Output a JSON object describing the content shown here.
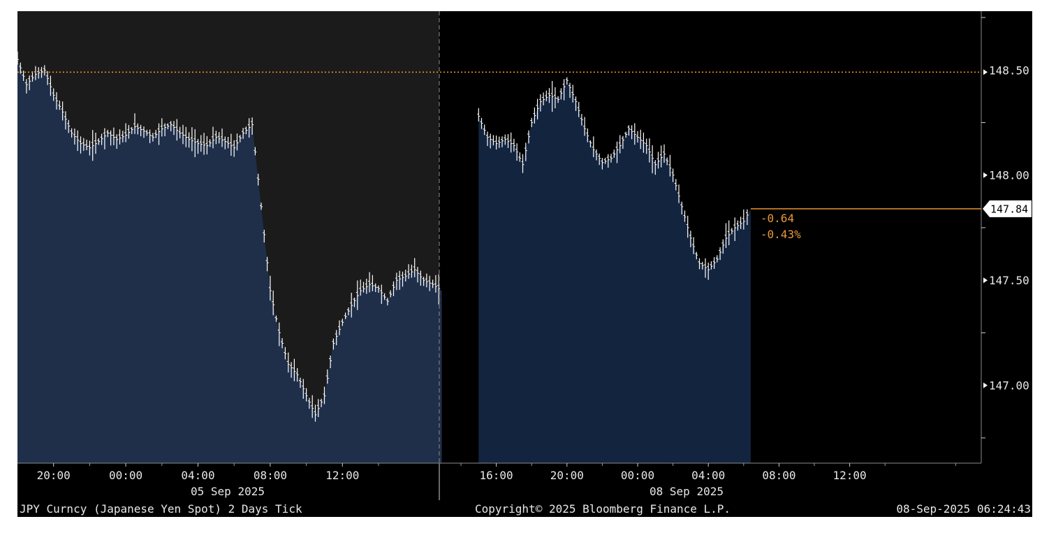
{
  "colors": {
    "session1_bg": "#1b1b1b",
    "session2_bg": "#000000",
    "area_fill_1": "#1f2f4a",
    "area_fill_2": "#13243f",
    "bars": "#ffffff",
    "reference_line": "#e8922a",
    "last_price_line": "#e8922a",
    "change_text": "#e89a3c",
    "axis_text": "#e8e8e8"
  },
  "header": {
    "security": "JPY Curncy (Japanese Yen Spot) 2 Days  Tick",
    "copyright": "Copyright© 2025 Bloomberg Finance L.P.",
    "timestamp": "08-Sep-2025 06:24:43"
  },
  "annotations": {
    "last_price": "147.84",
    "change": "-0.64",
    "change_pct": "-0.43%"
  },
  "chart_data": {
    "type": "line",
    "style": "tick-bars-with-area",
    "y_range": [
      146.63,
      148.78
    ],
    "y_ticks": [
      {
        "value": 148.5,
        "label": "148.50"
      },
      {
        "value": 148.0,
        "label": "148.00"
      },
      {
        "value": 147.5,
        "label": "147.50"
      },
      {
        "value": 147.0,
        "label": "147.00"
      }
    ],
    "y_minor_ticks": [
      148.75,
      148.25,
      147.75,
      147.25,
      146.75
    ],
    "reference_level": 148.49,
    "last_price": 147.84,
    "sessions": [
      {
        "date_label": "05 Sep 2025",
        "start_hour": 18.3,
        "end_hour": 18.3,
        "time_ticks": [
          {
            "hour": 20,
            "label": "20:00"
          },
          {
            "hour": 24,
            "label": "00:00"
          },
          {
            "hour": 28,
            "label": "04:00"
          },
          {
            "hour": 32,
            "label": "08:00"
          },
          {
            "hour": 36,
            "label": "12:00"
          }
        ],
        "x": [
          18.0,
          18.5,
          19.0,
          19.5,
          20.0,
          20.5,
          21.0,
          21.5,
          22.0,
          22.5,
          23.0,
          23.5,
          24.0,
          24.5,
          25.0,
          25.5,
          26.0,
          26.5,
          27.0,
          27.5,
          28.0,
          28.5,
          29.0,
          29.5,
          30.0,
          30.5,
          31.0,
          31.5,
          32.0,
          32.5,
          33.0,
          33.5,
          34.0,
          34.5,
          35.0,
          35.5,
          36.0,
          36.5,
          37.0,
          37.5,
          38.0,
          38.5,
          39.0,
          39.5,
          40.0,
          40.5,
          41.0,
          41.5
        ],
        "y": [
          148.55,
          148.43,
          148.48,
          148.5,
          148.38,
          148.3,
          148.2,
          148.15,
          148.13,
          148.16,
          148.2,
          148.17,
          148.19,
          148.23,
          148.21,
          148.18,
          148.22,
          148.24,
          148.2,
          148.17,
          148.15,
          148.14,
          148.18,
          148.16,
          148.13,
          148.2,
          148.24,
          147.85,
          147.45,
          147.25,
          147.1,
          147.05,
          146.95,
          146.86,
          146.95,
          147.2,
          147.3,
          147.38,
          147.45,
          147.48,
          147.46,
          147.4,
          147.5,
          147.52,
          147.55,
          147.5,
          147.48,
          147.45
        ]
      },
      {
        "date_label": "08 Sep 2025",
        "time_ticks": [
          {
            "hour": 16,
            "label": "16:00"
          },
          {
            "hour": 20,
            "label": "20:00"
          },
          {
            "hour": 24,
            "label": "00:00"
          },
          {
            "hour": 28,
            "label": "04:00"
          },
          {
            "hour": 32,
            "label": "08:00"
          },
          {
            "hour": 36,
            "label": "12:00"
          }
        ],
        "x": [
          15.0,
          15.5,
          16.0,
          16.5,
          17.0,
          17.5,
          18.0,
          18.5,
          19.0,
          19.5,
          20.0,
          20.5,
          21.0,
          21.5,
          22.0,
          22.5,
          23.0,
          23.5,
          24.0,
          24.5,
          25.0,
          25.5,
          26.0,
          26.5,
          27.0,
          27.5,
          28.0,
          28.5,
          29.0,
          29.5,
          30.0,
          30.4
        ],
        "y": [
          148.28,
          148.18,
          148.15,
          148.17,
          148.14,
          148.05,
          148.25,
          148.35,
          148.38,
          148.36,
          148.45,
          148.35,
          148.22,
          148.12,
          148.06,
          148.08,
          148.14,
          148.22,
          148.18,
          148.14,
          148.05,
          148.1,
          148.0,
          147.85,
          147.7,
          147.58,
          147.55,
          147.6,
          147.7,
          147.75,
          147.78,
          147.84
        ]
      }
    ]
  }
}
